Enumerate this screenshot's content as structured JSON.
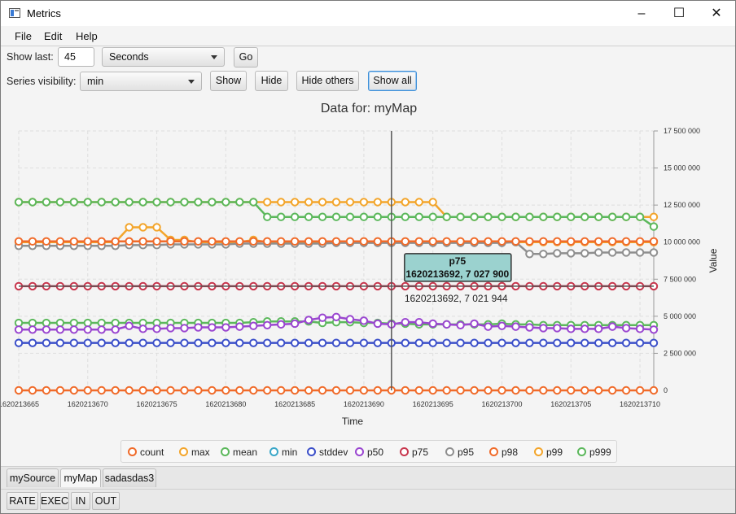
{
  "window": {
    "title": "Metrics",
    "icon": "app-window-icon"
  },
  "menu": [
    "File",
    "Edit",
    "Help"
  ],
  "controls": {
    "show_last_label": "Show last:",
    "show_last_value": "45",
    "unit_selected": "Seconds",
    "go_label": "Go",
    "series_visibility_label": "Series visibility:",
    "series_selected": "min",
    "show_label": "Show",
    "hide_label": "Hide",
    "hide_others_label": "Hide others",
    "show_all_label": "Show all"
  },
  "chart_data": {
    "type": "line",
    "title": "Data for: myMap",
    "xlabel": "Time",
    "ylabel": "Value",
    "xlim": [
      1620213665,
      1620213711
    ],
    "ylim": [
      0,
      17500000
    ],
    "x_ticks": [
      "1620213665",
      "1620213670",
      "1620213675",
      "1620213680",
      "1620213685",
      "1620213690",
      "1620213695",
      "1620213700",
      "1620213705",
      "1620213710"
    ],
    "y_ticks": [
      "0",
      "2 500 000",
      "5 000 000",
      "7 500 000",
      "10 000 000",
      "12 500 000",
      "15 000 000",
      "17 500 000"
    ],
    "grid": true,
    "legend_position": "bottom",
    "crosshair_x": 1620213692,
    "crosshair_label": "1620213692, 7 021 944",
    "tooltip": {
      "series": "p75",
      "text": "1620213692, 7 027 900"
    },
    "series": [
      {
        "name": "count",
        "color": "#f06b2a",
        "segments": [
          {
            "from": 1620213665,
            "to": 1620213711,
            "values": [
              0
            ]
          }
        ]
      },
      {
        "name": "max",
        "color": "#f3a52b",
        "segments": [
          {
            "from": 1620213665,
            "to": 1620213672,
            "values": [
              10000000
            ]
          },
          {
            "from": 1620213673,
            "to": 1620213675,
            "values": [
              11000000
            ]
          },
          {
            "from": 1620213676,
            "to": 1620213677,
            "values": [
              10150000
            ]
          },
          {
            "from": 1620213678,
            "to": 1620213681,
            "values": [
              10000000
            ]
          },
          {
            "from": 1620213682,
            "to": 1620213682,
            "values": [
              10150000
            ]
          },
          {
            "from": 1620213683,
            "to": 1620213711,
            "values": [
              10000000
            ]
          }
        ]
      },
      {
        "name": "mean",
        "color": "#5cb85c",
        "segments": [
          {
            "from": 1620213665,
            "to": 1620213711,
            "values": [
              4550000,
              4550000,
              4550000,
              4550000,
              4550000,
              4550000,
              4550000,
              4550000,
              4550000,
              4550000,
              4550000,
              4550000,
              4550000,
              4550000,
              4550000,
              4550000,
              4550000,
              4600000,
              4650000,
              4650000,
              4650000,
              4650000,
              4550000,
              4600000,
              4600000,
              4550000,
              4550000,
              4500000,
              4500000,
              4450000,
              4450000,
              4450000,
              4450000,
              4450000,
              4450000,
              4500000,
              4450000,
              4450000,
              4400000,
              4400000,
              4400000,
              4400000,
              4400000,
              4400000,
              4400000,
              4400000,
              4400000
            ]
          }
        ]
      },
      {
        "name": "min",
        "color": "#3aa7c8",
        "segments": []
      },
      {
        "name": "stddev",
        "color": "#3b4fc9",
        "segments": [
          {
            "from": 1620213665,
            "to": 1620213711,
            "values": [
              3200000
            ]
          }
        ]
      },
      {
        "name": "p50",
        "color": "#9a46d0",
        "segments": [
          {
            "from": 1620213665,
            "to": 1620213711,
            "values": [
              4100000,
              4100000,
              4100000,
              4100000,
              4100000,
              4100000,
              4100000,
              4100000,
              4350000,
              4150000,
              4150000,
              4200000,
              4200000,
              4250000,
              4250000,
              4250000,
              4300000,
              4350000,
              4400000,
              4450000,
              4500000,
              4750000,
              4900000,
              4950000,
              4800000,
              4700000,
              4500000,
              4450000,
              4600000,
              4600000,
              4500000,
              4450000,
              4400000,
              4500000,
              4300000,
              4350000,
              4300000,
              4250000,
              4200000,
              4200000,
              4150000,
              4150000,
              4150000,
              4300000,
              4200000,
              4150000,
              4100000
            ]
          }
        ]
      },
      {
        "name": "p75",
        "color": "#c8374e",
        "segments": [
          {
            "from": 1620213665,
            "to": 1620213711,
            "values": [
              7027900
            ]
          }
        ]
      },
      {
        "name": "p95",
        "color": "#8e8e8e",
        "segments": [
          {
            "from": 1620213665,
            "to": 1620213711,
            "values": [
              9750000,
              9750000,
              9750000,
              9750000,
              9750000,
              9750000,
              9750000,
              9750000,
              9800000,
              9800000,
              9800000,
              9850000,
              9850000,
              9850000,
              9850000,
              9850000,
              9900000,
              9900000,
              9900000,
              9900000,
              9900000,
              9900000,
              9900000,
              9950000,
              9950000,
              9950000,
              9950000,
              9950000,
              9950000,
              9950000,
              9950000,
              9950000,
              9950000,
              9950000,
              9950000,
              9950000,
              10000000,
              9200000,
              9200000,
              9250000,
              9250000,
              9250000,
              9300000,
              9300000,
              9300000,
              9300000,
              9300000
            ]
          }
        ]
      },
      {
        "name": "p98",
        "color": "#f06b2a",
        "segments": [
          {
            "from": 1620213665,
            "to": 1620213711,
            "values": [
              10050000
            ]
          }
        ]
      },
      {
        "name": "p99",
        "color": "#f3a52b",
        "segments": [
          {
            "from": 1620213665,
            "to": 1620213681,
            "values": [
              12700000
            ]
          },
          {
            "from": 1620213682,
            "to": 1620213695,
            "values": [
              12700000
            ]
          },
          {
            "from": 1620213696,
            "to": 1620213711,
            "values": [
              11700000
            ]
          }
        ]
      },
      {
        "name": "p999",
        "color": "#5cb85c",
        "segments": [
          {
            "from": 1620213665,
            "to": 1620213682,
            "values": [
              12700000
            ]
          },
          {
            "from": 1620213683,
            "to": 1620213710,
            "values": [
              11700000
            ]
          },
          {
            "from": 1620213711,
            "to": 1620213711,
            "values": [
              11050000
            ]
          }
        ]
      }
    ]
  },
  "tabs": [
    "mySource",
    "myMap",
    "sadasdas3"
  ],
  "selected_tab": "myMap",
  "bottom_tabs": [
    "RATE",
    "EXEC",
    "IN",
    "OUT"
  ]
}
